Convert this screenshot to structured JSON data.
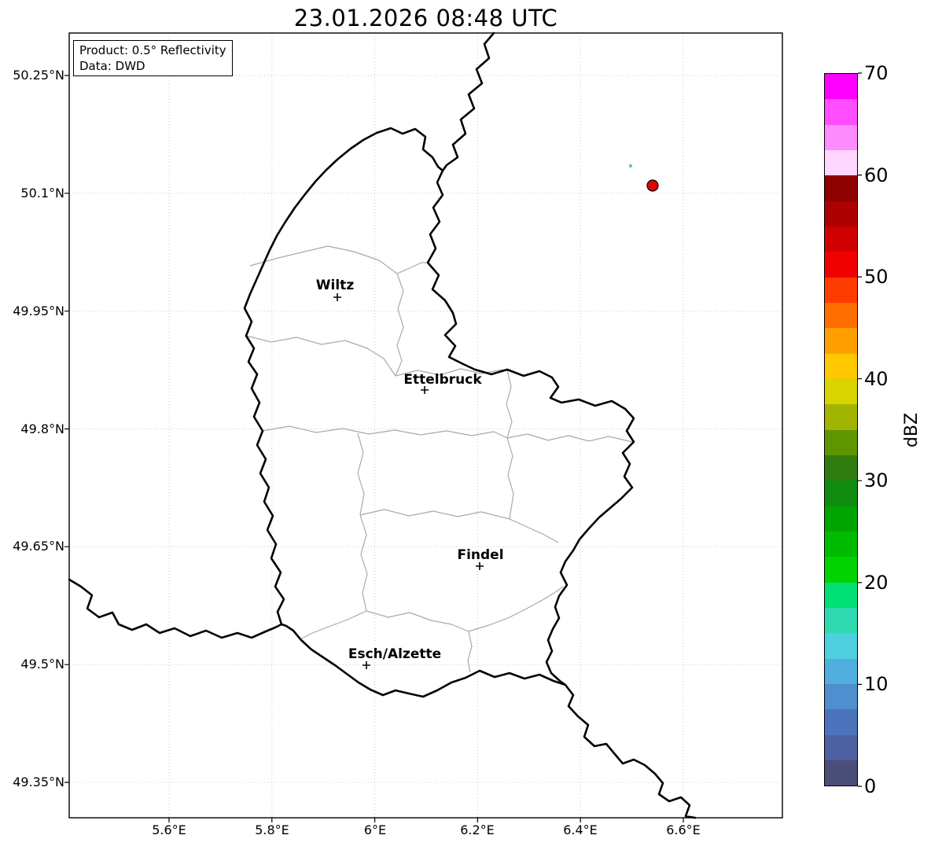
{
  "title": "23.01.2026 08:48 UTC",
  "info_box": {
    "product": "Product: 0.5° Reflectivity",
    "source": "Data: DWD"
  },
  "axes": {
    "y_ticks": [
      "50.25°N",
      "50.1°N",
      "49.95°N",
      "49.8°N",
      "49.65°N",
      "49.5°N",
      "49.35°N"
    ],
    "x_ticks": [
      "5.6°E",
      "5.8°E",
      "6°E",
      "6.2°E",
      "6.4°E",
      "6.6°E"
    ]
  },
  "cities": [
    {
      "name": "Wiltz"
    },
    {
      "name": "Ettelbruck"
    },
    {
      "name": "Findel"
    },
    {
      "name": "Esch/Alzette"
    }
  ],
  "colorbar": {
    "label": "dBZ",
    "ticks": [
      "70",
      "60",
      "50",
      "40",
      "30",
      "20",
      "10",
      "0"
    ],
    "range_min": 0,
    "range_max": 70,
    "colors_top_to_bottom": [
      "#ff00ff",
      "#ff4dff",
      "#ff8cff",
      "#ffd6ff",
      "#8f0000",
      "#ad0000",
      "#d00000",
      "#f10000",
      "#ff3c00",
      "#ff6e00",
      "#ffa000",
      "#ffc800",
      "#d8d400",
      "#a0b400",
      "#5f9600",
      "#2f7d10",
      "#0f8c0f",
      "#00a400",
      "#00bc00",
      "#00d300",
      "#00e077",
      "#2fd9b0",
      "#4fcfe0",
      "#52aede",
      "#4f8fd0",
      "#4b74bc",
      "#4c60a2",
      "#4a4e78"
    ]
  },
  "data_points": [
    {
      "name": "strong-echo",
      "color": "#e10600",
      "edge": "#000000",
      "approx_position": "6.54°E 50.11°N"
    },
    {
      "name": "weak-echo",
      "color": "#35d0ba",
      "approx_position": "6.50°E 50.13°N"
    }
  ]
}
